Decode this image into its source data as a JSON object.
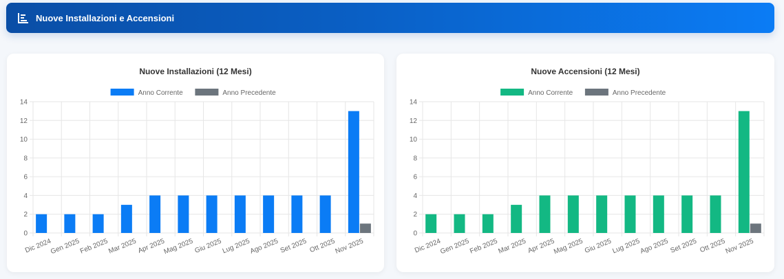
{
  "header": {
    "title": "Nuove Installazioni e Accensioni",
    "icon": "chart-bar-icon"
  },
  "colors": {
    "current_left": "#0b7cf5",
    "current_right": "#13b883",
    "previous": "#6c757d",
    "grid": "#e6e6e6",
    "text": "#666666",
    "title": "#333333"
  },
  "chart_data": [
    {
      "type": "bar",
      "title": "Nuove Installazioni (12 Mesi)",
      "categories": [
        "Dic 2024",
        "Gen 2025",
        "Feb 2025",
        "Mar 2025",
        "Apr 2025",
        "Mag 2025",
        "Giu 2025",
        "Lug 2025",
        "Ago 2025",
        "Set 2025",
        "Ott 2025",
        "Nov 2025"
      ],
      "series": [
        {
          "name": "Anno Corrente",
          "color": "#0b7cf5",
          "values": [
            2,
            2,
            2,
            3,
            4,
            4,
            4,
            4,
            4,
            4,
            4,
            13
          ]
        },
        {
          "name": "Anno Precedente",
          "color": "#6c757d",
          "values": [
            0,
            0,
            0,
            0,
            0,
            0,
            0,
            0,
            0,
            0,
            0,
            1
          ]
        }
      ],
      "xlabel": "",
      "ylabel": "",
      "ylim": [
        0,
        14
      ],
      "yticks": [
        0,
        2,
        4,
        6,
        8,
        10,
        12,
        14
      ],
      "grid": true,
      "legend_position": "top"
    },
    {
      "type": "bar",
      "title": "Nuove Accensioni (12 Mesi)",
      "categories": [
        "Dic 2024",
        "Gen 2025",
        "Feb 2025",
        "Mar 2025",
        "Apr 2025",
        "Mag 2025",
        "Giu 2025",
        "Lug 2025",
        "Ago 2025",
        "Set 2025",
        "Ott 2025",
        "Nov 2025"
      ],
      "series": [
        {
          "name": "Anno Corrente",
          "color": "#13b883",
          "values": [
            2,
            2,
            2,
            3,
            4,
            4,
            4,
            4,
            4,
            4,
            4,
            13
          ]
        },
        {
          "name": "Anno Precedente",
          "color": "#6c757d",
          "values": [
            0,
            0,
            0,
            0,
            0,
            0,
            0,
            0,
            0,
            0,
            0,
            1
          ]
        }
      ],
      "xlabel": "",
      "ylabel": "",
      "ylim": [
        0,
        14
      ],
      "yticks": [
        0,
        2,
        4,
        6,
        8,
        10,
        12,
        14
      ],
      "grid": true,
      "legend_position": "top"
    }
  ]
}
